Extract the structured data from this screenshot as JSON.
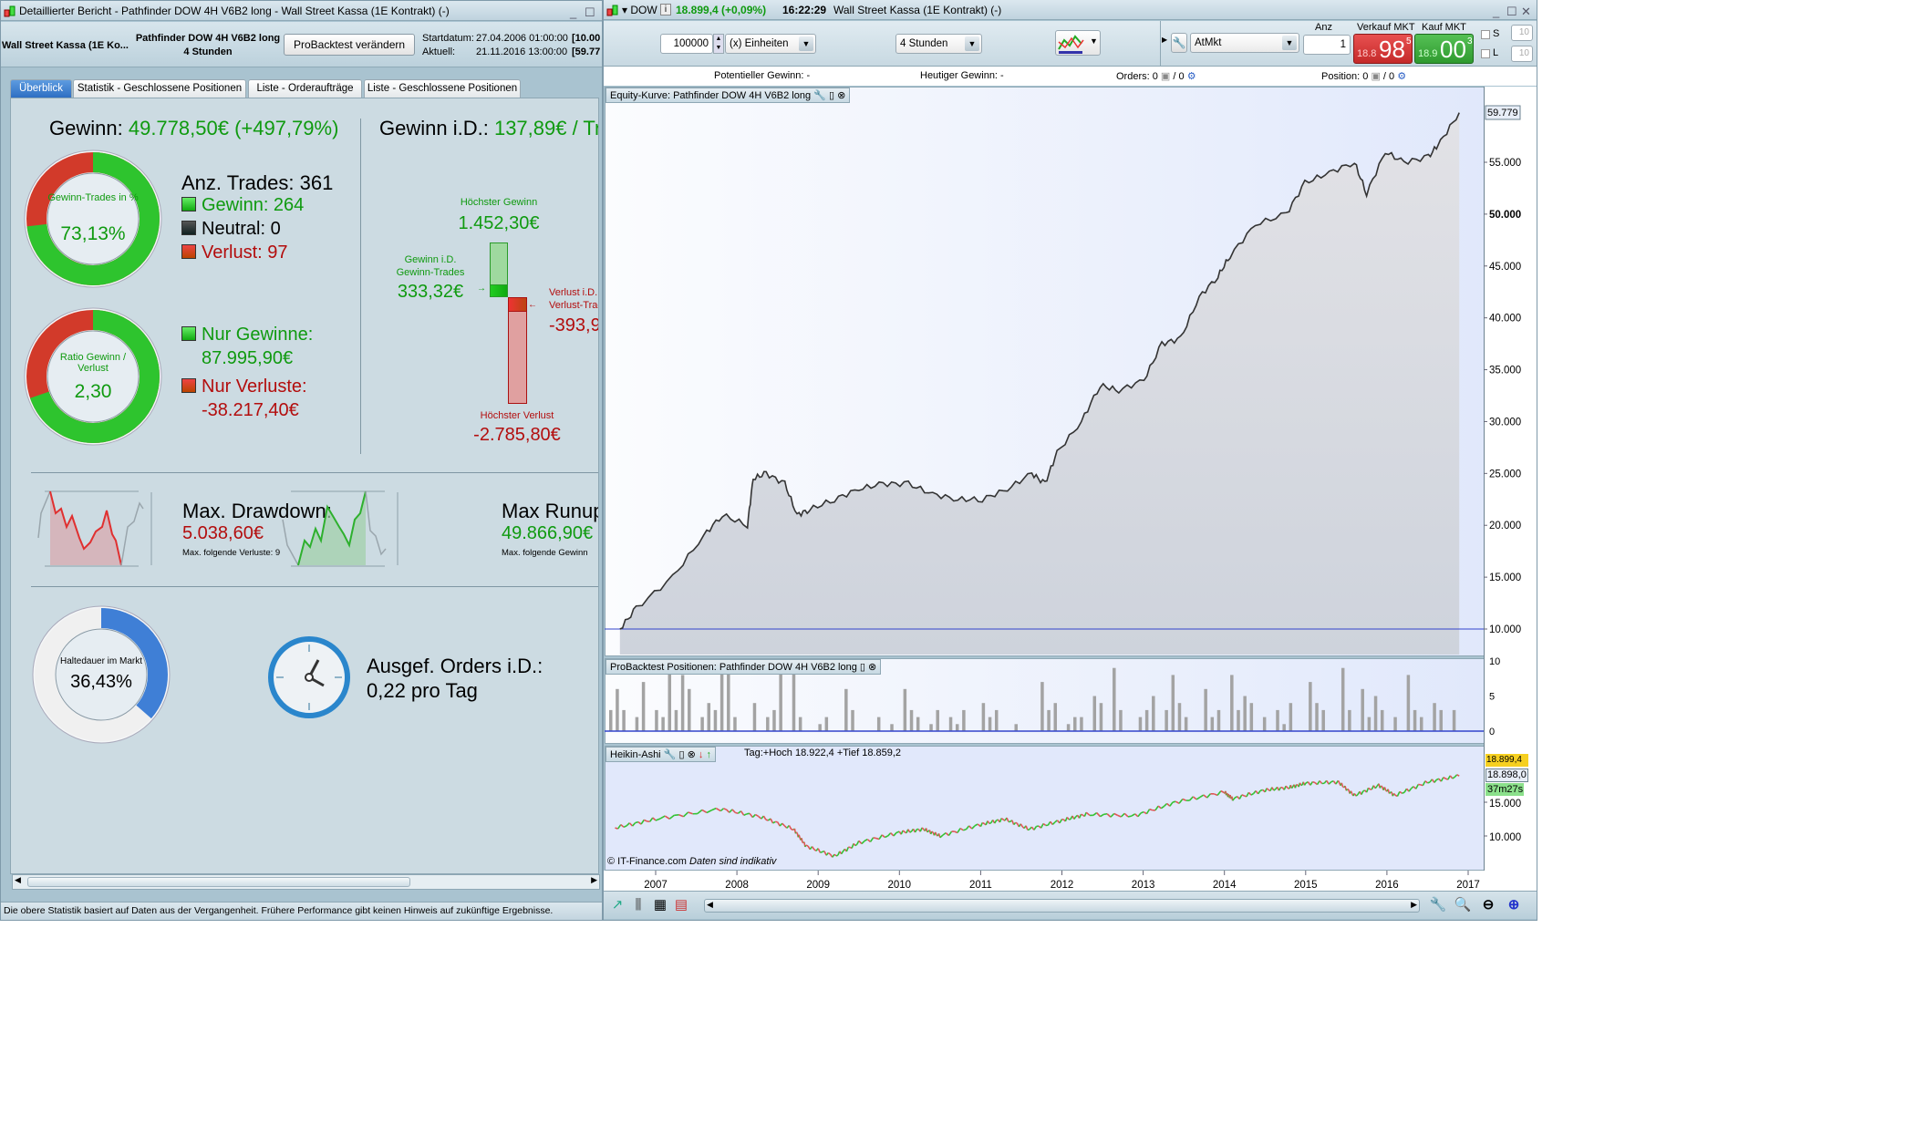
{
  "left_window": {
    "title": "Detaillierter Bericht - Pathfinder DOW 4H V6B2 long - Wall Street Kassa (1E Kontrakt) (-)",
    "instrument": "Wall Street Kassa (1E Ko...",
    "system_name": "Pathfinder DOW 4H V6B2 long",
    "timeframe": "4 Stunden",
    "modify_button": "ProBacktest verändern",
    "start_label": "Startdatum:",
    "start_value": "27.04.2006 01:00:00",
    "start_capital": "[10.00",
    "current_label": "Aktuell:",
    "current_value": "21.11.2016 13:00:00",
    "current_capital": "[59.77",
    "tabs": [
      {
        "label": "Überblick",
        "active": true
      },
      {
        "label": "Statistik - Geschlossene Positionen"
      },
      {
        "label": "Liste - Orderaufträge"
      },
      {
        "label": "Liste - Geschlossene Positionen"
      }
    ],
    "profit_label": "Gewinn:",
    "profit_value": "49.778,50€ (+497,79%)",
    "profit_id_label": "Gewinn i.D.:",
    "profit_id_value": "137,89€ / Tr",
    "winrate": {
      "label": "Gewinn-Trades in %",
      "value": "73,13%",
      "percent": 73.13
    },
    "trades_label": "Anz. Trades: 361",
    "win_count": "Gewinn: 264",
    "neutral_count": "Neutral: 0",
    "loss_count": "Verlust: 97",
    "ratio": {
      "label": "Ratio Gewinn / Verlust",
      "value": "2,30",
      "win_share": 69.7
    },
    "only_gains_label": "Nur Gewinne:",
    "only_gains_value": "87.995,90€",
    "only_losses_label": "Nur Verluste:",
    "only_losses_value": "-38.217,40€",
    "max_gain_label": "Höchster Gewinn",
    "max_gain_value": "1.452,30€",
    "avg_win_label_1": "Gewinn i.D.",
    "avg_win_label_2": "Gewinn-Trades",
    "avg_win_value": "333,32€",
    "avg_loss_label_1": "Verlust i.D.",
    "avg_loss_label_2": "Verlust-Trad",
    "avg_loss_value": "-393,9",
    "max_loss_label": "Höchster Verlust",
    "max_loss_value": "-2.785,80€",
    "drawdown_label": "Max. Drawdown:",
    "drawdown_value": "5.038,60€",
    "drawdown_sub": "Max. folgende Verluste: 9",
    "runup_label": "Max Runup",
    "runup_value": "49.866,90€",
    "runup_sub": "Max. folgende Gewinn",
    "holding": {
      "label": "Haltedauer im Markt",
      "value": "36,43%",
      "percent": 36.43
    },
    "orders_label": "Ausgef. Orders i.D.:",
    "orders_value": "0,22 pro Tag",
    "status": "Die obere Statistik basiert auf Daten aus der Vergangenheit. Frühere Performance gibt keinen Hinweis auf zukünftige Ergebnisse."
  },
  "right_window": {
    "symbol": "DOW",
    "price": "18.899,4 (+0,09%)",
    "time": "16:22:29",
    "title_rest": "Wall Street Kassa (1E Kontrakt) (-)",
    "quantity": "100000",
    "unit": "(x) Einheiten",
    "timeframe": "4 Stunden",
    "order_type": "AtMkt",
    "anz_label": "Anz",
    "anz_value": "1",
    "sell_label": "Verkauf MKT",
    "sell_prefix": "18.8",
    "sell_big": "98",
    "sell_frac": "5",
    "buy_label": "Kauf MKT",
    "buy_prefix": "18.9",
    "buy_big": "00",
    "buy_frac": "3",
    "s_label": "S",
    "l_label": "L",
    "s_value": "10",
    "l_value": "10",
    "pot_gain": "Potentieller Gewinn:  -",
    "today_gain": "Heutiger Gewinn:  -",
    "orders": "Orders: 0",
    "orders_2": "/ 0",
    "position": "Position: 0",
    "position_2": "/ 0",
    "equity_tab": "Equity-Kurve: Pathfinder DOW 4H V6B2 long",
    "positions_tab": "ProBacktest Positionen: Pathfinder DOW 4H V6B2 long",
    "ha_tab": "Heikin-Ashi",
    "ha_info": "Tag:+Hoch 18.922,4 +Tief 18.859,2",
    "copyright": "© IT-Finance.com",
    "disclaimer": "Daten sind indikativ",
    "last_price_tag": "18.899,4",
    "price_tag": "18.898,0",
    "countdown": "37m27s",
    "colors": {
      "up": "#33c233",
      "down": "#e05555",
      "sell": "#d63a3a",
      "buy": "#3aa83a"
    }
  },
  "chart_data": [
    {
      "type": "area",
      "title": "Equity-Kurve: Pathfinder DOW 4H V6B2 long",
      "ylim": [
        10000,
        59779
      ],
      "yticks": [
        "10.000",
        "15.000",
        "20.000",
        "25.000",
        "30.000",
        "35.000",
        "40.000",
        "45.000",
        "50.000",
        "55.000"
      ],
      "last_value_label": "59.779",
      "x": [
        2006.56,
        2006.76,
        2007.21,
        2007.59,
        2007.82,
        2008.13,
        2008.2,
        2008.36,
        2008.59,
        2008.74,
        2008.89,
        2009.2,
        2009.5,
        2009.8,
        2010.11,
        2010.41,
        2010.72,
        2011.02,
        2011.33,
        2011.63,
        2011.79,
        2011.94,
        2012.24,
        2012.47,
        2012.7,
        2013.01,
        2013.23,
        2013.46,
        2013.69,
        2013.92,
        2014.07,
        2014.38,
        2014.76,
        2014.99,
        2015.29,
        2015.6,
        2015.75,
        2015.98,
        2016.21,
        2016.51,
        2016.66,
        2016.89
      ],
      "y": [
        10000,
        12000,
        15000,
        19000,
        21000,
        20000,
        24500,
        25000,
        24000,
        21000,
        21500,
        22500,
        23500,
        24000,
        24000,
        23000,
        22500,
        22500,
        23500,
        25000,
        24000,
        27000,
        30000,
        33500,
        33000,
        34000,
        37500,
        38000,
        42000,
        44000,
        46000,
        49000,
        50000,
        53000,
        54000,
        55000,
        52000,
        56000,
        55000,
        55500,
        57000,
        59779
      ]
    },
    {
      "type": "bar",
      "title": "ProBacktest Positionen: Pathfinder DOW 4H V6B2 long",
      "yticks": [
        "0",
        "5",
        "10"
      ],
      "ylim": [
        0,
        10
      ],
      "values": [
        3,
        6,
        3,
        0,
        2,
        7,
        0,
        3,
        2,
        9,
        3,
        8,
        6,
        0,
        2,
        4,
        3,
        9,
        9,
        2,
        0,
        0,
        4,
        0,
        2,
        3,
        9,
        0,
        9,
        2,
        0,
        0,
        1,
        2,
        0,
        0,
        6,
        3,
        0,
        0,
        0,
        2,
        0,
        1,
        0,
        6,
        3,
        2,
        0,
        1,
        3,
        0,
        2,
        1,
        3,
        0,
        0,
        4,
        2,
        3,
        0,
        0,
        1,
        0,
        0,
        0,
        7,
        3,
        4,
        0,
        1,
        2,
        2,
        0,
        5,
        4,
        0,
        9,
        3,
        0,
        0,
        2,
        3,
        5,
        0,
        3,
        8,
        4,
        2,
        0,
        0,
        6,
        2,
        3,
        0,
        8,
        3,
        5,
        4,
        0,
        2,
        0,
        3,
        1,
        4,
        0,
        0,
        7,
        4,
        3,
        0,
        0,
        9,
        3,
        0,
        6,
        2,
        5,
        3,
        0,
        2,
        0,
        8,
        3,
        2,
        0,
        4,
        3,
        0,
        3
      ]
    },
    {
      "type": "line",
      "title": "Heikin-Ashi",
      "yticks": [
        "10.000",
        "15.000"
      ],
      "xticks": [
        "2007",
        "2008",
        "2009",
        "2010",
        "2011",
        "2012",
        "2013",
        "2014",
        "2015",
        "2016",
        "2017"
      ],
      "x": [
        2006.5,
        2007,
        2007.8,
        2008.3,
        2008.7,
        2008.85,
        2009.2,
        2009.5,
        2010,
        2010.3,
        2010.5,
        2011,
        2011.3,
        2011.6,
        2012,
        2012.3,
        2012.9,
        2013.4,
        2014,
        2014.1,
        2014.5,
        2014.8,
        2015,
        2015.4,
        2015.6,
        2015.9,
        2016.1,
        2016.5,
        2016.89
      ],
      "y": [
        11200,
        12500,
        14000,
        12800,
        11000,
        8500,
        7000,
        9000,
        10500,
        11000,
        10000,
        11700,
        12500,
        11000,
        12300,
        13200,
        13000,
        15000,
        16500,
        15500,
        16800,
        17200,
        17800,
        18000,
        16000,
        17500,
        16000,
        18000,
        18898
      ]
    }
  ]
}
